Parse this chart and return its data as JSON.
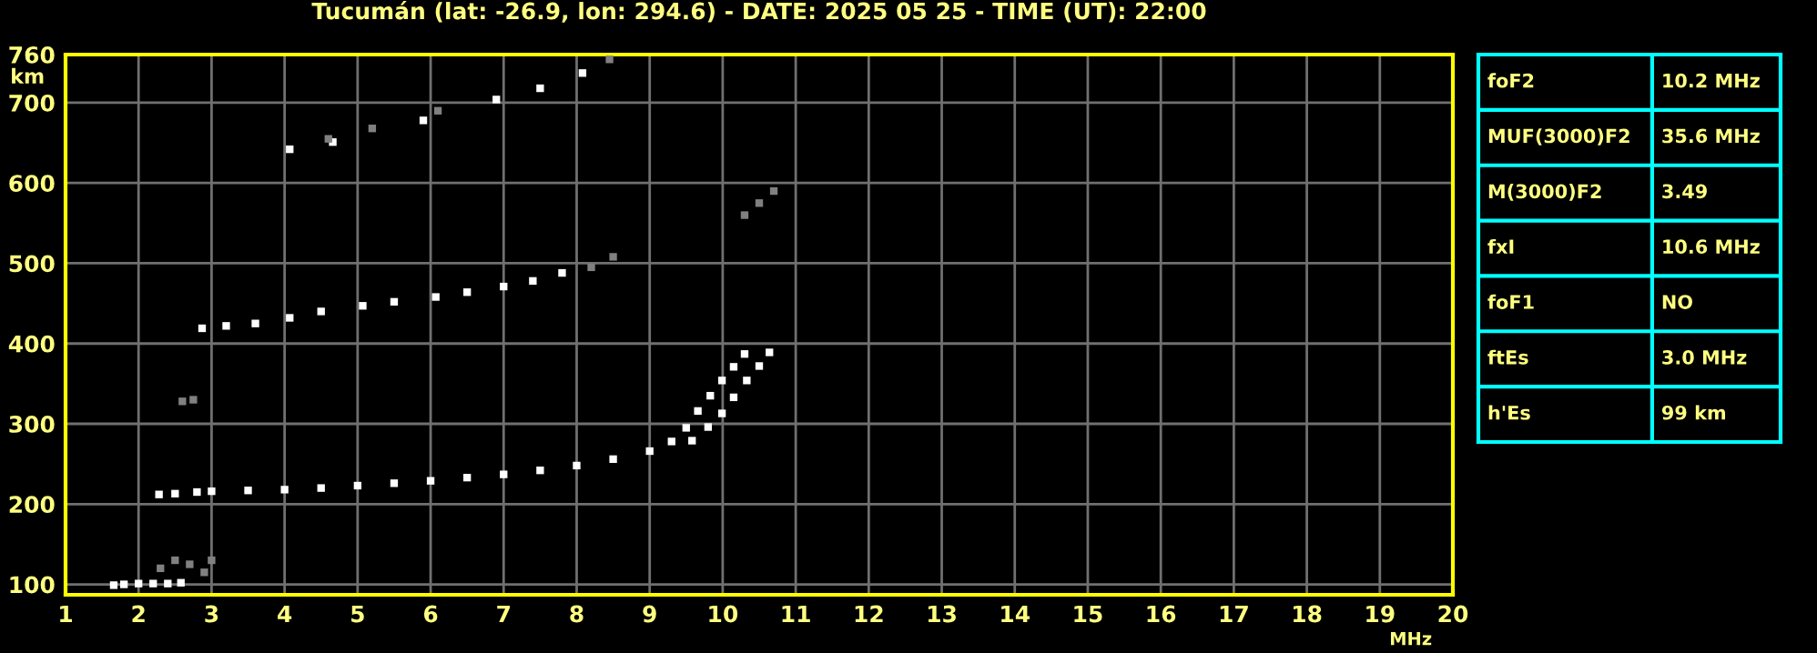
{
  "chart_data": [
    {
      "type": "scatter",
      "title": "Tucumán (lat: -26.9, lon: 294.6) - DATE: 2025 05 25 - TIME (UT): 22:00",
      "xlabel": "MHz",
      "ylabel": "km",
      "xlim": [
        1,
        20
      ],
      "ylim": [
        87,
        760
      ],
      "xticks": [
        1,
        2,
        3,
        4,
        5,
        6,
        7,
        8,
        9,
        10,
        11,
        12,
        13,
        14,
        15,
        16,
        17,
        18,
        19,
        20
      ],
      "yticks": [
        100,
        200,
        300,
        400,
        500,
        600,
        700,
        760
      ],
      "grid": true,
      "marker": "square",
      "series": [
        {
          "color": "#ffffff",
          "x": [
            1.66,
            1.8,
            2.0,
            2.2,
            2.4,
            2.58,
            2.28,
            2.5,
            2.8,
            3.0,
            3.5,
            4.0,
            4.5,
            5.0,
            5.5,
            6.0,
            6.5,
            7.0,
            7.5,
            8.0,
            8.5,
            9.0,
            9.3,
            9.5,
            9.66,
            9.83,
            9.99,
            10.15,
            10.3,
            9.58,
            9.8,
            9.99,
            10.15,
            10.33,
            10.5,
            10.64,
            2.87,
            3.2,
            3.6,
            4.07,
            4.5,
            5.07,
            5.5,
            6.07,
            6.5,
            7.0,
            7.4,
            7.8,
            4.07,
            4.66,
            5.9,
            6.9,
            7.5,
            8.08
          ],
          "values": [
            99,
            100,
            101,
            101,
            101,
            102,
            212,
            213,
            215,
            216,
            217,
            218,
            220,
            223,
            226,
            229,
            233,
            237,
            242,
            248,
            256,
            266,
            278,
            295,
            316,
            335,
            354,
            371,
            387,
            279,
            296,
            313,
            333,
            354,
            372,
            389,
            419,
            422,
            425,
            432,
            440,
            447,
            452,
            458,
            464,
            471,
            478,
            488,
            642,
            651,
            678,
            704,
            718,
            737
          ]
        },
        {
          "color": "#808080",
          "x": [
            2.3,
            2.5,
            2.7,
            2.9,
            3.0,
            2.6,
            2.75,
            8.2,
            8.5,
            10.3,
            10.5,
            10.7,
            4.6,
            5.2,
            6.1,
            8.45
          ],
          "values": [
            120,
            130,
            125,
            115,
            130,
            328,
            330,
            495,
            508,
            560,
            575,
            590,
            655,
            668,
            690,
            754
          ]
        }
      ]
    },
    {
      "type": "other",
      "annotations": [
        "foF2",
        "10.2 MHz",
        "MUF(3000)F2",
        "35.6 MHz",
        "M(3000)F2",
        "3.49",
        "fxI",
        "10.6 MHz",
        "foF1",
        "NO",
        "ftEs",
        "3.0 MHz",
        "h'Es",
        "99 km"
      ]
    }
  ]
}
